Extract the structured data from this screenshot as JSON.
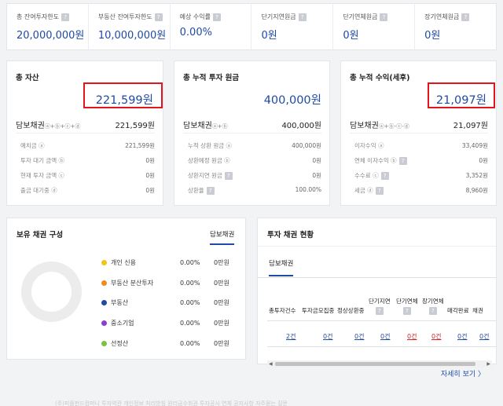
{
  "stats": [
    {
      "label": "총 잔여투자한도",
      "value": "20,000,000원"
    },
    {
      "label": "부동산 잔여투자한도",
      "value": "10,000,000원"
    },
    {
      "label": "예상 수익률",
      "value": "0.00%"
    },
    {
      "label": "단기지연원금",
      "value": "0원"
    },
    {
      "label": "단기연체원금",
      "value": "0원"
    },
    {
      "label": "장기연체원금",
      "value": "0원"
    }
  ],
  "assets": {
    "title": "총 자산",
    "total": "221,599원",
    "main_label": "담보채권",
    "main_sup": "ⓐ+ⓑ+ⓒ+ⓓ",
    "main_value": "221,599원",
    "rows": [
      {
        "label": "예치금 ⓐ",
        "value": "221,599원"
      },
      {
        "label": "투자 대기 금액 ⓑ",
        "value": "0원"
      },
      {
        "label": "현재 투자 금액 ⓒ",
        "value": "0원"
      },
      {
        "label": "출금 대기중 ⓓ",
        "value": "0원"
      }
    ]
  },
  "principal": {
    "title": "총 누적 투자 원금",
    "total": "400,000원",
    "main_label": "담보채권",
    "main_sup": "ⓐ+ⓑ",
    "main_value": "400,000원",
    "rows": [
      {
        "label": "누적 상환 원금 ⓐ",
        "value": "400,000원"
      },
      {
        "label": "상환예정 원금 ⓑ",
        "value": "0원"
      },
      {
        "label": "상환지연 원금",
        "value": "0원"
      },
      {
        "label": "상환율",
        "value": "100.00%"
      }
    ]
  },
  "returns": {
    "title": "총 누적 수익(세후)",
    "total": "21,097원",
    "main_label": "담보채권",
    "main_sup": "ⓐ+ⓑ-ⓒ-ⓓ",
    "main_value": "21,097원",
    "rows": [
      {
        "label": "이자수익 ⓐ",
        "value": "33,409원"
      },
      {
        "label": "연체 이자수익 ⓑ",
        "value": "0원"
      },
      {
        "label": "수수료 ⓒ",
        "value": "3,352원"
      },
      {
        "label": "세금 ⓓ",
        "value": "8,960원"
      }
    ]
  },
  "composition": {
    "title": "보유 채권 구성",
    "tab": "담보채권",
    "items": [
      {
        "label": "개인 신용",
        "color": "#f0c419",
        "pct": "0.00%",
        "amount": "0만원"
      },
      {
        "label": "부동산 분산투자",
        "color": "#f08c1e",
        "pct": "0.00%",
        "amount": "0만원"
      },
      {
        "label": "부동산",
        "color": "#1f4aa5",
        "pct": "0.00%",
        "amount": "0만원"
      },
      {
        "label": "중소기업",
        "color": "#8a3fd1",
        "pct": "0.00%",
        "amount": "0만원"
      },
      {
        "label": "선정산",
        "color": "#7cc242",
        "pct": "0.00%",
        "amount": "0만원"
      }
    ]
  },
  "status": {
    "title": "투자 채권 현황",
    "tab": "담보채권",
    "headers": [
      "총투자건수",
      "투자금모집중",
      "정상상환중",
      "단기지연",
      "단기연체",
      "장기연체",
      "매각완료",
      "채권"
    ],
    "values": [
      "2건",
      "0건",
      "0건",
      "0건",
      "0건",
      "0건",
      "0건",
      "0건"
    ],
    "more": "자세히 보기 〉"
  },
  "footer": "(주)피플펀드컴퍼니 투자약관  개인정보 처리방침  원리금수취권  투자공시  연체  공지사항  자주묻는 질문"
}
